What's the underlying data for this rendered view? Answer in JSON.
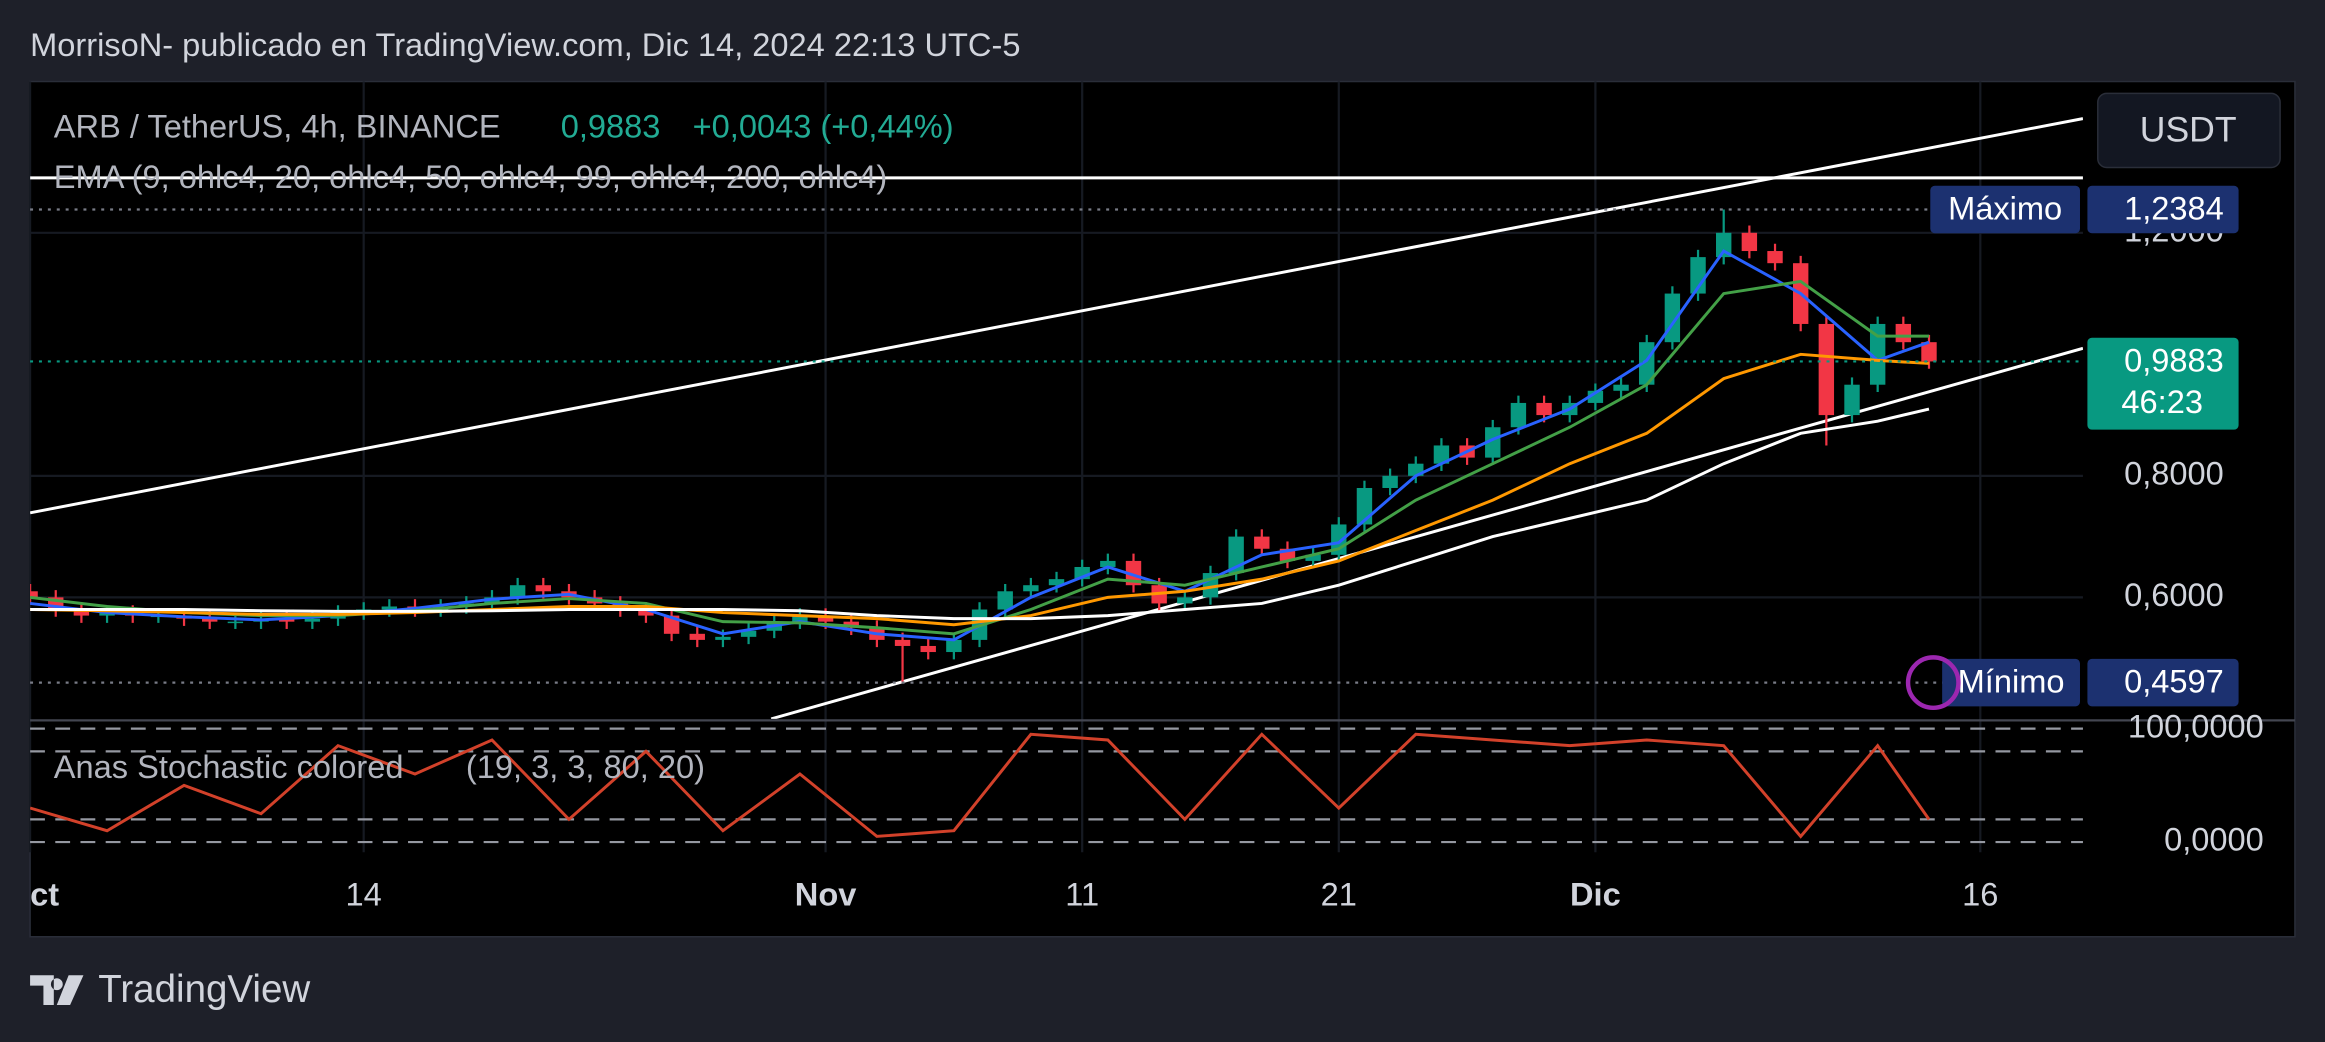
{
  "header": "MorrisoN- publicado en TradingView.com, Dic 14, 2024 22:13 UTC-5",
  "footer": "TradingView",
  "chart_data": {
    "type": "candlestick",
    "title": "ARB / TetherUS, 4h, BINANCE",
    "indicator": "EMA (9, ohlc4, 20, ohlc4, 50, ohlc4, 99, ohlc4, 200, ohlc4)",
    "currency": "USDT",
    "up_color": "#089981",
    "down_color": "#f23645",
    "xlim": [
      0,
      80
    ],
    "xticks": [
      {
        "value": 0,
        "label": "ct"
      },
      {
        "value": 13,
        "label": "14"
      },
      {
        "value": 31,
        "label": "Nov"
      },
      {
        "value": 41,
        "label": "11"
      },
      {
        "value": 51,
        "label": "21"
      },
      {
        "value": 61,
        "label": "Dic"
      },
      {
        "value": 76,
        "label": "16"
      }
    ],
    "ylim": [
      0.4,
      1.449
    ],
    "yticks": [
      {
        "value": 0.6,
        "label": "0,6000"
      },
      {
        "value": 0.8,
        "label": "0,8000"
      },
      {
        "value": 1.2,
        "label": "1,2000"
      }
    ],
    "grid": true,
    "x": [
      0,
      1,
      2,
      3,
      4,
      5,
      6,
      7,
      8,
      9,
      10,
      11,
      12,
      13,
      14,
      15,
      16,
      17,
      18,
      19,
      20,
      21,
      22,
      23,
      24,
      25,
      26,
      27,
      28,
      29,
      30,
      31,
      32,
      33,
      34,
      35,
      36,
      37,
      38,
      39,
      40,
      41,
      42,
      43,
      44,
      45,
      46,
      47,
      48,
      49,
      50,
      51,
      52,
      53,
      54,
      55,
      56,
      57,
      58,
      59,
      60,
      61,
      62,
      63,
      64,
      65,
      66,
      67,
      68,
      69,
      70,
      71,
      72,
      73,
      74
    ],
    "open": [
      0.61,
      0.6,
      0.58,
      0.57,
      0.575,
      0.57,
      0.57,
      0.565,
      0.56,
      0.56,
      0.565,
      0.56,
      0.565,
      0.575,
      0.58,
      0.585,
      0.58,
      0.585,
      0.59,
      0.6,
      0.62,
      0.61,
      0.6,
      0.59,
      0.58,
      0.57,
      0.54,
      0.53,
      0.535,
      0.545,
      0.56,
      0.57,
      0.56,
      0.55,
      0.53,
      0.52,
      0.51,
      0.53,
      0.58,
      0.61,
      0.62,
      0.63,
      0.65,
      0.66,
      0.62,
      0.59,
      0.6,
      0.64,
      0.7,
      0.68,
      0.66,
      0.67,
      0.72,
      0.78,
      0.8,
      0.82,
      0.85,
      0.83,
      0.88,
      0.92,
      0.9,
      0.92,
      0.94,
      0.95,
      1.02,
      1.1,
      1.16,
      1.2,
      1.17,
      1.15,
      1.05,
      0.9,
      0.95,
      1.05,
      1.02
    ],
    "high": [
      0.622,
      0.612,
      0.592,
      0.587,
      0.587,
      0.582,
      0.582,
      0.577,
      0.572,
      0.577,
      0.577,
      0.577,
      0.587,
      0.592,
      0.597,
      0.597,
      0.597,
      0.602,
      0.612,
      0.632,
      0.632,
      0.622,
      0.612,
      0.602,
      0.592,
      0.582,
      0.552,
      0.547,
      0.557,
      0.572,
      0.582,
      0.582,
      0.572,
      0.562,
      0.542,
      0.532,
      0.542,
      0.592,
      0.622,
      0.632,
      0.642,
      0.662,
      0.672,
      0.672,
      0.632,
      0.612,
      0.652,
      0.712,
      0.712,
      0.692,
      0.682,
      0.732,
      0.792,
      0.812,
      0.832,
      0.862,
      0.862,
      0.892,
      0.932,
      0.932,
      0.932,
      0.952,
      0.962,
      1.032,
      1.112,
      1.172,
      1.2384,
      1.212,
      1.182,
      1.162,
      1.062,
      0.962,
      1.062,
      1.062,
      1.032
    ],
    "low": [
      0.588,
      0.568,
      0.558,
      0.558,
      0.558,
      0.558,
      0.553,
      0.548,
      0.548,
      0.548,
      0.548,
      0.548,
      0.553,
      0.563,
      0.568,
      0.568,
      0.568,
      0.573,
      0.578,
      0.588,
      0.598,
      0.588,
      0.578,
      0.568,
      0.558,
      0.528,
      0.518,
      0.518,
      0.523,
      0.533,
      0.548,
      0.548,
      0.538,
      0.518,
      0.4597,
      0.498,
      0.498,
      0.518,
      0.568,
      0.598,
      0.608,
      0.618,
      0.638,
      0.608,
      0.578,
      0.578,
      0.588,
      0.628,
      0.668,
      0.648,
      0.648,
      0.658,
      0.708,
      0.768,
      0.788,
      0.808,
      0.818,
      0.818,
      0.868,
      0.888,
      0.888,
      0.908,
      0.928,
      0.938,
      1.008,
      1.088,
      1.148,
      1.158,
      1.138,
      1.038,
      0.85,
      0.888,
      0.938,
      1.008,
      0.9763
    ],
    "close": [
      0.6,
      0.58,
      0.57,
      0.575,
      0.57,
      0.57,
      0.565,
      0.56,
      0.56,
      0.565,
      0.56,
      0.565,
      0.575,
      0.58,
      0.585,
      0.58,
      0.585,
      0.59,
      0.6,
      0.62,
      0.61,
      0.6,
      0.59,
      0.58,
      0.57,
      0.54,
      0.53,
      0.535,
      0.545,
      0.56,
      0.57,
      0.56,
      0.55,
      0.53,
      0.52,
      0.51,
      0.53,
      0.58,
      0.61,
      0.62,
      0.63,
      0.65,
      0.66,
      0.62,
      0.59,
      0.6,
      0.64,
      0.7,
      0.68,
      0.66,
      0.67,
      0.72,
      0.78,
      0.8,
      0.82,
      0.85,
      0.83,
      0.88,
      0.92,
      0.9,
      0.92,
      0.94,
      0.95,
      1.02,
      1.1,
      1.16,
      1.2,
      1.17,
      1.15,
      1.05,
      0.9,
      0.95,
      1.05,
      1.02,
      0.9883
    ],
    "ema_x": [
      0,
      3,
      6,
      9,
      12,
      15,
      18,
      21,
      24,
      27,
      30,
      33,
      36,
      39,
      42,
      45,
      48,
      51,
      54,
      57,
      60,
      63,
      66,
      69,
      72,
      74
    ],
    "ema": [
      {
        "color": "#2962ff",
        "values": [
          0.59,
          0.575,
          0.568,
          0.563,
          0.57,
          0.582,
          0.597,
          0.605,
          0.58,
          0.54,
          0.56,
          0.54,
          0.53,
          0.6,
          0.65,
          0.61,
          0.67,
          0.69,
          0.8,
          0.86,
          0.91,
          0.99,
          1.17,
          1.1,
          0.99,
          1.02
        ]
      },
      {
        "color": "#43a047",
        "values": [
          0.6,
          0.585,
          0.575,
          0.57,
          0.57,
          0.578,
          0.59,
          0.598,
          0.59,
          0.56,
          0.558,
          0.55,
          0.54,
          0.58,
          0.63,
          0.62,
          0.65,
          0.68,
          0.76,
          0.82,
          0.88,
          0.95,
          1.1,
          1.12,
          1.03,
          1.03
        ]
      },
      {
        "color": "#ff9800",
        "values": [
          0.58,
          0.578,
          0.575,
          0.572,
          0.572,
          0.575,
          0.58,
          0.585,
          0.585,
          0.575,
          0.57,
          0.565,
          0.555,
          0.57,
          0.6,
          0.61,
          0.63,
          0.66,
          0.71,
          0.76,
          0.82,
          0.87,
          0.96,
          1.0,
          0.99,
          0.985
        ]
      },
      {
        "color": "#ffffff",
        "values": [
          0.58,
          0.58,
          0.58,
          0.578,
          0.577,
          0.577,
          0.578,
          0.58,
          0.58,
          0.58,
          0.578,
          0.57,
          0.565,
          0.565,
          0.57,
          0.58,
          0.59,
          0.62,
          0.66,
          0.7,
          0.73,
          0.76,
          0.82,
          0.87,
          0.89,
          0.91
        ]
      }
    ],
    "high_marker": {
      "text": "Máximo",
      "value": 1.2384,
      "label": "1,2384"
    },
    "low_marker": {
      "text": "Mínimo",
      "value": 0.4597,
      "label": "0,4597"
    },
    "last": {
      "value": 0.9883,
      "label": "0,9883",
      "change": "+0,0043 (+0,44%)",
      "countdown": "46:23"
    },
    "stochastic": {
      "name": "Anas Stochastic colored",
      "params": "(19, 3, 3, 80, 20)",
      "color": "#d2412a",
      "ylim": [
        -9,
        106
      ],
      "yticks": [
        {
          "value": 100,
          "label": "100,0000"
        },
        {
          "value": 0,
          "label": "0,0000"
        }
      ],
      "levels": [
        80,
        20
      ],
      "values": [
        30,
        10,
        50,
        25,
        85,
        60,
        90,
        20,
        80,
        10,
        60,
        5,
        10,
        95,
        90,
        20,
        95,
        30,
        95,
        90,
        85,
        90,
        85,
        5,
        85,
        20
      ]
    }
  }
}
